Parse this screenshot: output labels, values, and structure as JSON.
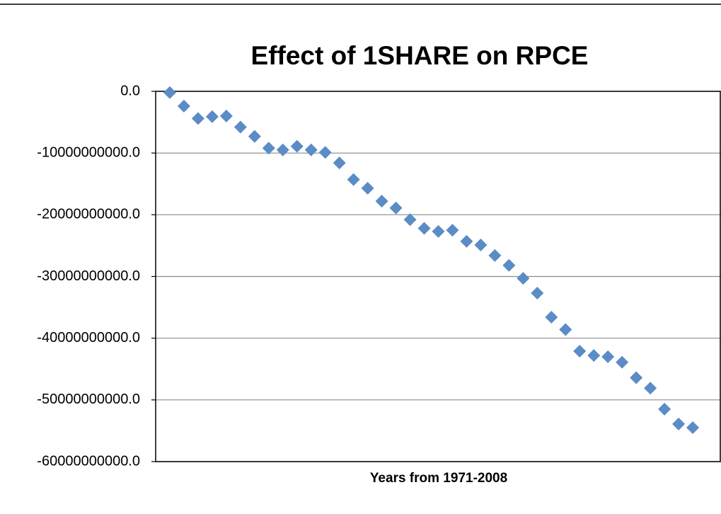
{
  "chart_data": {
    "type": "scatter",
    "title": "Effect of 1SHARE on RPCE",
    "x_label": "Years from 1971-2008",
    "x": [
      1,
      2,
      3,
      4,
      5,
      6,
      7,
      8,
      9,
      10,
      11,
      12,
      13,
      14,
      15,
      16,
      17,
      18,
      19,
      20,
      21,
      22,
      23,
      24,
      25,
      26,
      27,
      28,
      29,
      30,
      31,
      32,
      33,
      34,
      35,
      36,
      37,
      38
    ],
    "series": [
      {
        "color": "#5b8cc6",
        "values": [
          -200000000,
          -2400000000,
          -4400000000,
          -4100000000,
          -4000000000,
          -5800000000,
          -7300000000,
          -9200000000,
          -9500000000,
          -8900000000,
          -9500000000,
          -9900000000,
          -11600000000,
          -14300000000,
          -15700000000,
          -17800000000,
          -18900000000,
          -20800000000,
          -22200000000,
          -22700000000,
          -22500000000,
          -24300000000,
          -24900000000,
          -26600000000,
          -28200000000,
          -30300000000,
          -32700000000,
          -36600000000,
          -38600000000,
          -42100000000,
          -42800000000,
          -43000000000,
          -43900000000,
          -46400000000,
          -48100000000,
          -51500000000,
          -53900000000,
          -54500000000
        ]
      }
    ],
    "xlim": [
      0,
      40
    ],
    "ylim": [
      -60000000000,
      0
    ],
    "yticks": [
      {
        "value": 0,
        "label": "0.0"
      },
      {
        "value": -10000000000,
        "label": "-10000000000.0"
      },
      {
        "value": -20000000000,
        "label": "-20000000000.0"
      },
      {
        "value": -30000000000,
        "label": "-30000000000.0"
      },
      {
        "value": -40000000000,
        "label": "-40000000000.0"
      },
      {
        "value": -50000000000,
        "label": "-50000000000.0"
      },
      {
        "value": -60000000000,
        "label": "-60000000000.0"
      }
    ],
    "grid": true
  }
}
